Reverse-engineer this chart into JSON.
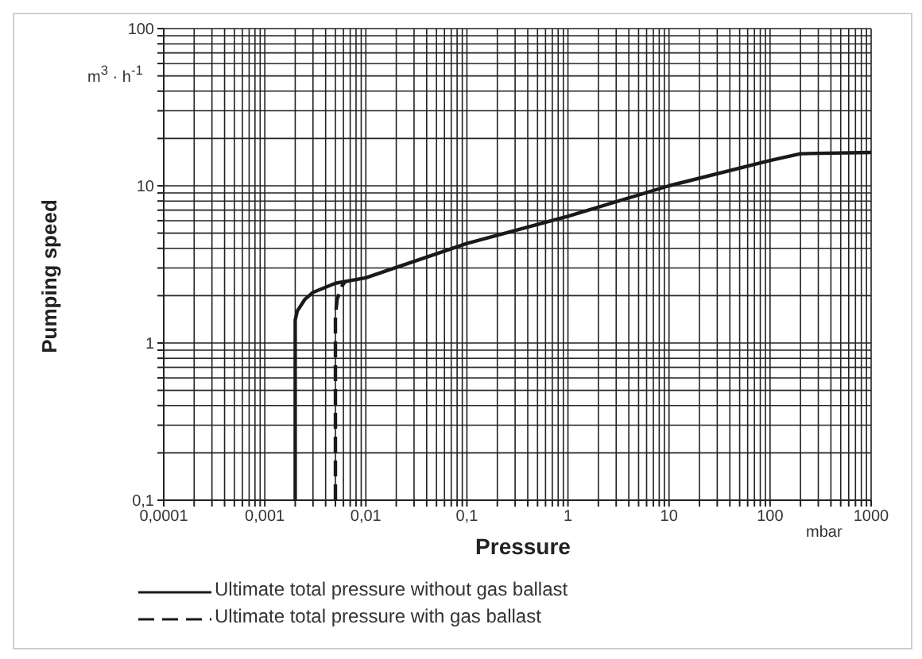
{
  "chart_data": {
    "type": "line",
    "xlabel": "Pressure",
    "ylabel": "Pumping speed",
    "log": "xy",
    "grid": true,
    "legend": "bottom",
    "marker": "none",
    "xlim": [
      0.0001,
      1000
    ],
    "xticks": [
      {
        "value": 0.0001,
        "label": "0,0001"
      },
      {
        "value": 0.0002,
        "label": null
      },
      {
        "value": 0.0003,
        "label": null
      },
      {
        "value": 0.0004,
        "label": null
      },
      {
        "value": 0.0005,
        "label": null
      },
      {
        "value": 0.0006,
        "label": null
      },
      {
        "value": 0.0007,
        "label": null
      },
      {
        "value": 0.0008,
        "label": null
      },
      {
        "value": 0.0009,
        "label": null
      },
      {
        "value": 0.001,
        "label": "0,001"
      },
      {
        "value": 0.002,
        "label": null
      },
      {
        "value": 0.003,
        "label": null
      },
      {
        "value": 0.004,
        "label": null
      },
      {
        "value": 0.005,
        "label": null
      },
      {
        "value": 0.006,
        "label": null
      },
      {
        "value": 0.007,
        "label": null
      },
      {
        "value": 0.008,
        "label": null
      },
      {
        "value": 0.009,
        "label": null
      },
      {
        "value": 0.01,
        "label": "0,01"
      },
      {
        "value": 0.02,
        "label": null
      },
      {
        "value": 0.03,
        "label": null
      },
      {
        "value": 0.04,
        "label": null
      },
      {
        "value": 0.05,
        "label": null
      },
      {
        "value": 0.06,
        "label": null
      },
      {
        "value": 0.07,
        "label": null
      },
      {
        "value": 0.08,
        "label": null
      },
      {
        "value": 0.09,
        "label": null
      },
      {
        "value": 0.1,
        "label": "0,1"
      },
      {
        "value": 0.2,
        "label": null
      },
      {
        "value": 0.3,
        "label": null
      },
      {
        "value": 0.4,
        "label": null
      },
      {
        "value": 0.5,
        "label": null
      },
      {
        "value": 0.6,
        "label": null
      },
      {
        "value": 0.7,
        "label": null
      },
      {
        "value": 0.8,
        "label": null
      },
      {
        "value": 0.9,
        "label": null
      },
      1,
      {
        "value": 2,
        "label": null
      },
      {
        "value": 3,
        "label": null
      },
      {
        "value": 4,
        "label": null
      },
      {
        "value": 5,
        "label": null
      },
      {
        "value": 6,
        "label": null
      },
      {
        "value": 7,
        "label": null
      },
      {
        "value": 8,
        "label": null
      },
      {
        "value": 9,
        "label": null
      },
      10,
      {
        "value": 20,
        "label": null
      },
      {
        "value": 30,
        "label": null
      },
      {
        "value": 40,
        "label": null
      },
      {
        "value": 50,
        "label": null
      },
      {
        "value": 60,
        "label": null
      },
      {
        "value": 70,
        "label": null
      },
      {
        "value": 80,
        "label": null
      },
      {
        "value": 90,
        "label": null
      },
      100,
      {
        "value": 200,
        "label": null
      },
      {
        "value": 300,
        "label": null
      },
      {
        "value": 400,
        "label": null
      },
      {
        "value": 500,
        "label": null
      },
      {
        "value": 600,
        "label": null
      },
      {
        "value": 700,
        "label": null
      },
      {
        "value": 800,
        "label": null
      },
      {
        "value": 900,
        "label": null
      },
      1000
    ],
    "ylim": [
      0.1,
      100
    ],
    "yticks": [
      {
        "value": 0.1,
        "label": "0,1"
      },
      {
        "value": 0.2,
        "label": null
      },
      {
        "value": 0.3,
        "label": null
      },
      {
        "value": 0.4,
        "label": null
      },
      {
        "value": 0.5,
        "label": null
      },
      {
        "value": 0.6,
        "label": null
      },
      {
        "value": 0.7,
        "label": null
      },
      {
        "value": 0.8,
        "label": null
      },
      {
        "value": 0.9,
        "label": null
      },
      1,
      {
        "value": 2,
        "label": null
      },
      {
        "value": 3,
        "label": null
      },
      {
        "value": 4,
        "label": null
      },
      {
        "value": 5,
        "label": null
      },
      {
        "value": 6,
        "label": null
      },
      {
        "value": 7,
        "label": null
      },
      {
        "value": 8,
        "label": null
      },
      {
        "value": 9,
        "label": null
      },
      10,
      {
        "value": 20,
        "label": null
      },
      {
        "value": 30,
        "label": null
      },
      {
        "value": 40,
        "label": null
      },
      {
        "value": 50,
        "label": null
      },
      {
        "value": 60,
        "label": null
      },
      {
        "value": 70,
        "label": null
      },
      {
        "value": 80,
        "label": null
      },
      {
        "value": 90,
        "label": null
      },
      100
    ],
    "series": [
      {
        "name": "Ultimate total pressure without gas ballast",
        "color": "#1a1a1a",
        "line_style": "solid",
        "x": [
          0.002,
          0.002,
          0.0021,
          0.0025,
          0.003,
          0.005,
          0.01,
          0.1,
          1,
          10,
          100,
          200,
          1000
        ],
        "values": [
          0.1,
          1.4,
          1.6,
          1.9,
          2.1,
          2.4,
          2.6,
          4.3,
          6.4,
          10,
          14.5,
          16,
          16.3
        ]
      },
      {
        "name": "Ultimate total pressure with gas ballast",
        "color": "#1a1a1a",
        "line_style": "dashed",
        "x": [
          0.005,
          0.005,
          0.0052,
          0.0058,
          0.0062
        ],
        "values": [
          0.1,
          1.5,
          1.9,
          2.3,
          2.45
        ]
      }
    ],
    "annotations": [
      "m$^{3}$ · h$^{-1}$",
      "mbar"
    ]
  }
}
